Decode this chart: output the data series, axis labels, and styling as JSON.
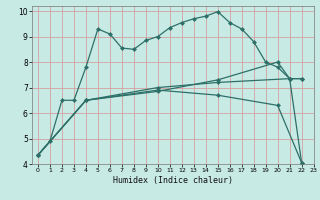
{
  "xlabel": "Humidex (Indice chaleur)",
  "bg_color": "#c8eae5",
  "grid_color_major": "#d4a0a0",
  "line_color": "#2d7068",
  "xlim": [
    -0.5,
    23
  ],
  "ylim": [
    4,
    10.2
  ],
  "xticks": [
    0,
    1,
    2,
    3,
    4,
    5,
    6,
    7,
    8,
    9,
    10,
    11,
    12,
    13,
    14,
    15,
    16,
    17,
    18,
    19,
    20,
    21,
    22,
    23
  ],
  "yticks": [
    4,
    5,
    6,
    7,
    8,
    9,
    10
  ],
  "line1_x": [
    0,
    1,
    2,
    3,
    4,
    5,
    6,
    7,
    8,
    9,
    10,
    11,
    12,
    13,
    14,
    15,
    16,
    17,
    18,
    19,
    20,
    21,
    22
  ],
  "line1_y": [
    4.35,
    4.9,
    6.5,
    6.5,
    7.8,
    9.3,
    9.1,
    8.55,
    8.5,
    8.85,
    9.0,
    9.35,
    9.55,
    9.7,
    9.8,
    9.98,
    9.55,
    9.3,
    8.8,
    8.0,
    7.8,
    7.35,
    4.05
  ],
  "line2_x": [
    0,
    4,
    10,
    15,
    20,
    21,
    22
  ],
  "line2_y": [
    4.35,
    6.5,
    6.85,
    7.3,
    8.0,
    7.35,
    7.35
  ],
  "line3_x": [
    0,
    4,
    10,
    15,
    21,
    22
  ],
  "line3_y": [
    4.35,
    6.5,
    7.0,
    7.2,
    7.35,
    7.35
  ],
  "line4_x": [
    0,
    4,
    10,
    15,
    20,
    22
  ],
  "line4_y": [
    4.35,
    6.5,
    6.9,
    6.7,
    6.3,
    4.05
  ],
  "markersize": 2.5
}
